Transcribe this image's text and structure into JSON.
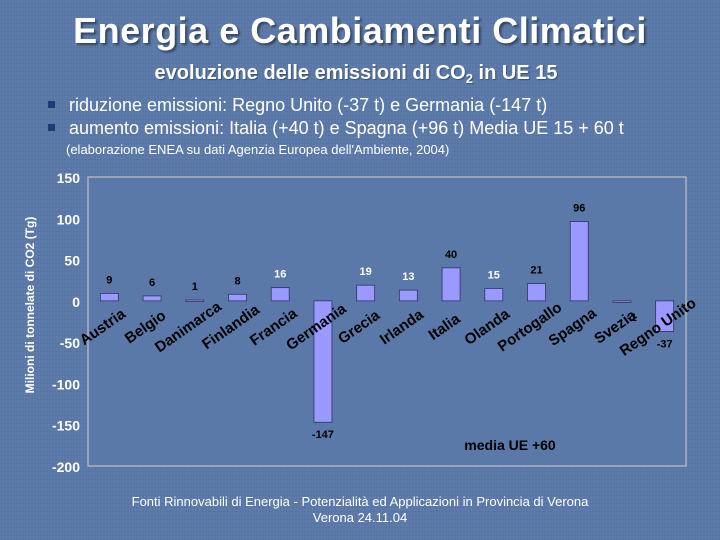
{
  "slide": {
    "title": "Energia e Cambiamenti Climatici",
    "subtitle_prefix": "evoluzione delle emissioni di CO",
    "subtitle_sub": "2",
    "subtitle_suffix": " in UE 15",
    "bullets": [
      "riduzione emissioni: Regno Unito (-37 t) e Germania (-147 t)",
      "aumento emissioni: Italia (+40 t) e Spagna (+96 t) Media UE 15 + 60 t"
    ],
    "source_note": "(elaborazione ENEA su dati Agenzia Europea dell'Ambiente, 2004)",
    "footer_line1": "Fonti Rinnovabili di Energia - Potenzialità ed Applicazioni in Provincia di Verona",
    "footer_line2": "Verona 24.11.04"
  },
  "chart_data": {
    "type": "bar",
    "categories": [
      "Austria",
      "Belgio",
      "Danimarca",
      "Finlandia",
      "Francia",
      "Germania",
      "Grecia",
      "Irlanda",
      "Italia",
      "Olanda",
      "Portogallo",
      "Spagna",
      "Svezia",
      "Regno Unito"
    ],
    "values": [
      9,
      6,
      1,
      8,
      16,
      -147,
      19,
      13,
      40,
      15,
      21,
      96,
      -1,
      -37
    ],
    "data_labels": [
      "9",
      "6",
      "1",
      "8",
      "16",
      "-147",
      "19",
      "13",
      "40",
      "15",
      "21",
      "96",
      "-1",
      "-37"
    ],
    "ylabel": "Milioni di tonnelate di CO2 (Tg)",
    "ylim": [
      -200,
      150
    ],
    "yticks": [
      150,
      100,
      50,
      0,
      -50,
      -100,
      -150,
      -200
    ],
    "annotation": "media UE +60",
    "grid": false,
    "colors": {
      "bar_fill": "#9999ff",
      "bar_stroke": "#333366",
      "plot_bg": "#5a79a8",
      "plot_border": "#c0c0c0"
    }
  }
}
